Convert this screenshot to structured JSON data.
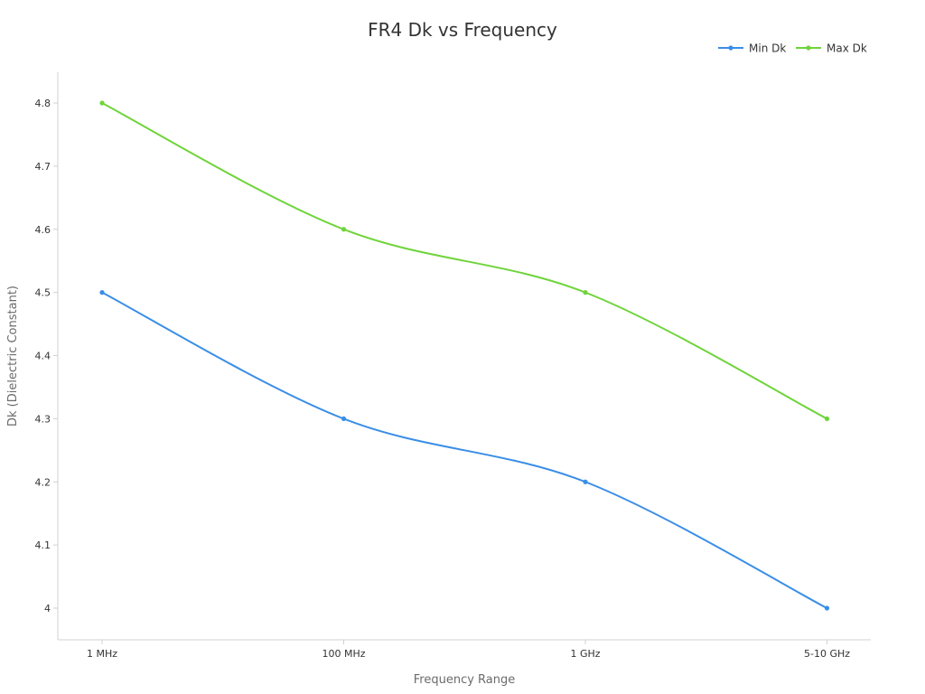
{
  "chart_data": {
    "type": "line",
    "title": "FR4 Dk vs Frequency",
    "xlabel": "Frequency Range",
    "ylabel": "Dk (Dielectric Constant)",
    "categories": [
      "1 MHz",
      "100 MHz",
      "1 GHz",
      "5-10 GHz"
    ],
    "y_ticks": [
      "4",
      "4.1",
      "4.2",
      "4.3",
      "4.4",
      "4.5",
      "4.6",
      "4.7",
      "4.8"
    ],
    "ylim": [
      3.95,
      4.85
    ],
    "grid": false,
    "legend_position": "top-right",
    "series": [
      {
        "name": "Min Dk",
        "values": [
          4.5,
          4.3,
          4.2,
          4.0
        ],
        "color": "#3a8ee6"
      },
      {
        "name": "Max Dk",
        "values": [
          4.8,
          4.6,
          4.5,
          4.3
        ],
        "color": "#6fd43a"
      }
    ]
  }
}
